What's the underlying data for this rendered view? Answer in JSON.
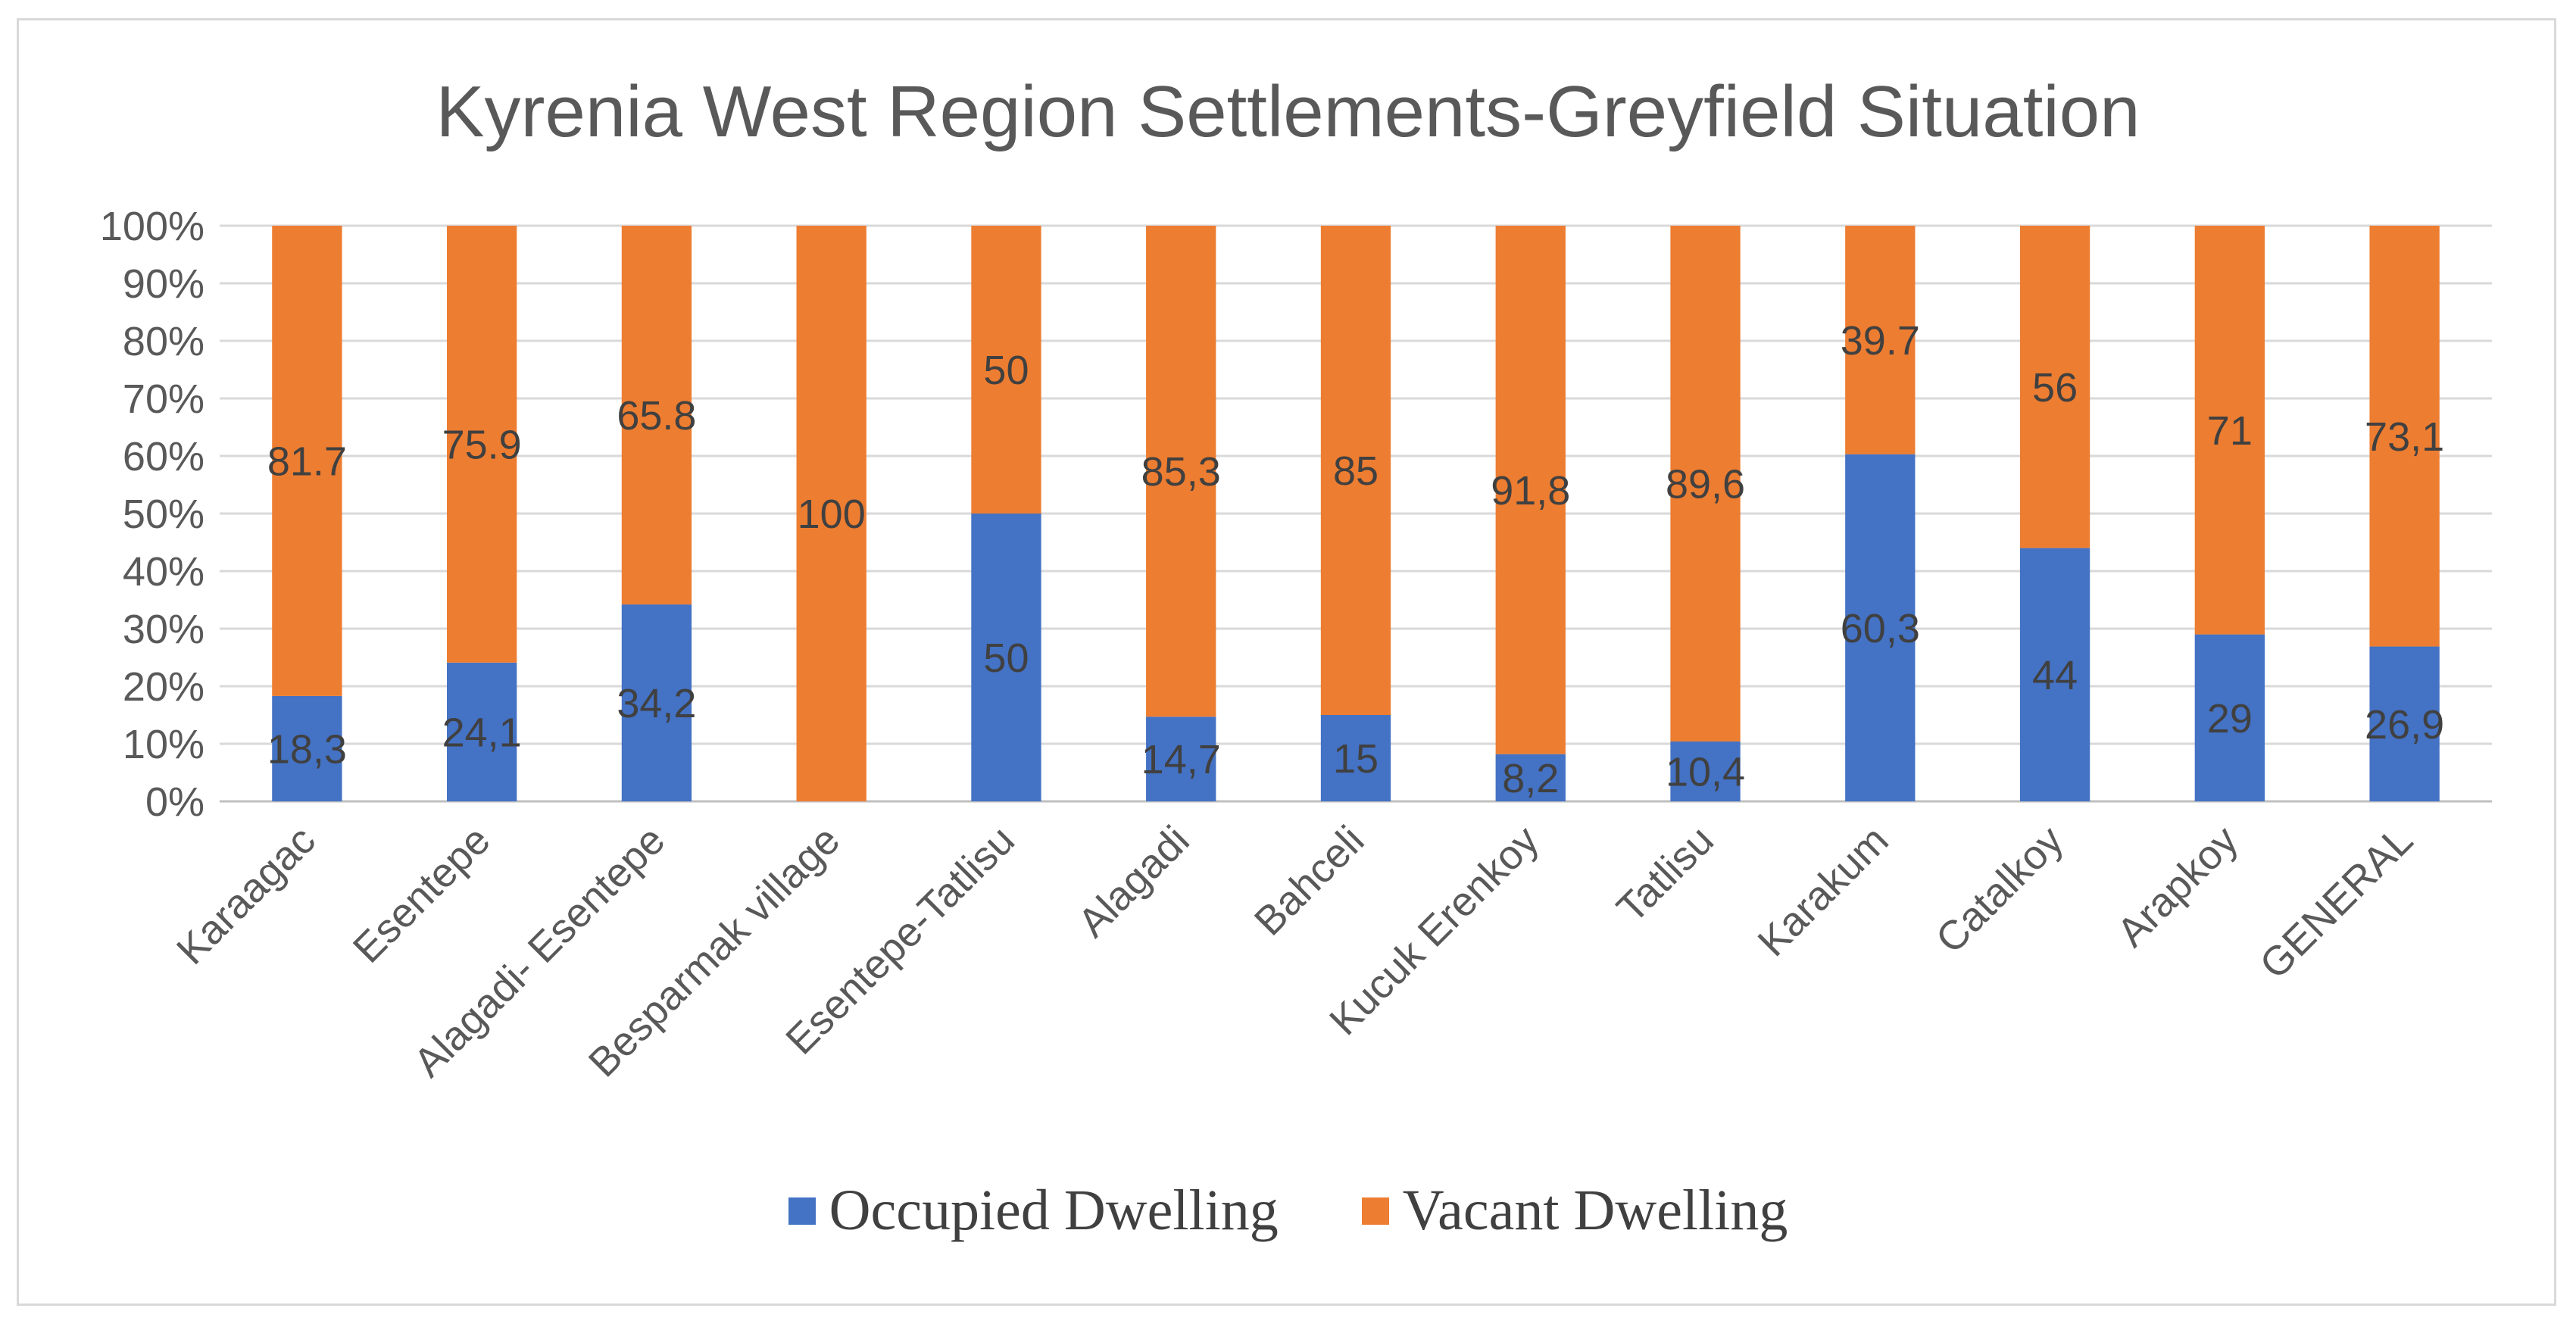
{
  "chart_data": {
    "type": "bar",
    "stacked": true,
    "percent": true,
    "title": "Kyrenia West Region Settlements-Greyfield Situation",
    "categories": [
      "Karaagac",
      "Esentepe",
      "Alagadi- Esentepe",
      "Besparmak village",
      "Esentepe-Tatlisu",
      "Alagadi",
      "Bahceli",
      "Kucuk Erenkoy",
      "Tatlisu",
      "Karakum",
      "Catalkoy",
      "Arapkoy",
      "GENERAL"
    ],
    "series": [
      {
        "name": "Occupied Dwelling",
        "color": "#4472c4",
        "values": [
          18.3,
          24.1,
          34.2,
          0,
          50,
          14.7,
          15,
          8.2,
          10.4,
          60.3,
          44,
          29,
          26.9
        ],
        "labels": [
          "18,3",
          "24,1",
          "34,2",
          "",
          "50",
          "14,7",
          "15",
          "8,2",
          "10,4",
          "60,3",
          "44",
          "29",
          "26,9"
        ]
      },
      {
        "name": "Vacant Dwelling",
        "color": "#ed7d31",
        "values": [
          81.7,
          75.9,
          65.8,
          100,
          50,
          85.3,
          85,
          91.8,
          89.6,
          39.7,
          56,
          71,
          73.1
        ],
        "labels": [
          "81.7",
          "75.9",
          "65.8",
          "100",
          "50",
          "85,3",
          "85",
          "91,8",
          "89,6",
          "39.7",
          "56",
          "71",
          "73,1"
        ]
      }
    ],
    "yticks": [
      "0%",
      "10%",
      "20%",
      "30%",
      "40%",
      "50%",
      "60%",
      "70%",
      "80%",
      "90%",
      "100%"
    ],
    "ylim": [
      0,
      100
    ],
    "grid": true,
    "legend_position": "bottom"
  }
}
